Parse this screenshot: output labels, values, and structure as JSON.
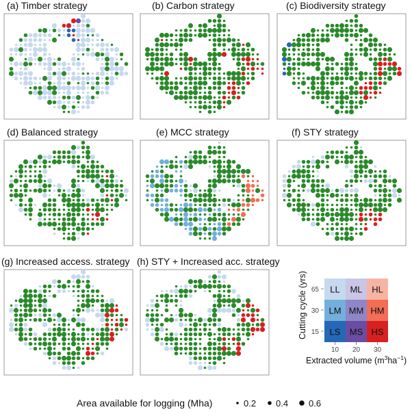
{
  "figure": {
    "panels": [
      {
        "id": "a",
        "title": "(a) Timber strategy"
      },
      {
        "id": "b",
        "title": "(b) Carbon strategy"
      },
      {
        "id": "c",
        "title": "(c) Biodiversity strategy"
      },
      {
        "id": "d",
        "title": "(d) Balanced strategy"
      },
      {
        "id": "e",
        "title": "(e) MCC strategy"
      },
      {
        "id": "f",
        "title": "(f) STY strategy"
      },
      {
        "id": "g",
        "title": "(g) Increased access. strategy"
      },
      {
        "id": "h",
        "title": "(h) STY + Increased acc. strategy"
      }
    ],
    "colors": {
      "LL": "#c6d9ee",
      "ML": "#c9c6e6",
      "HL": "#f7b4a3",
      "LM": "#73afdc",
      "MM": "#8e86c6",
      "HM": "#f26e55",
      "LS": "#2568b5",
      "MS": "#6a4da3",
      "HS": "#d7201f",
      "green": "#2a8a2a"
    }
  },
  "chart_data": {
    "type": "scatter",
    "subtype": "bivariate dot map (8 panels)",
    "legend_matrix": {
      "ylabel": "Cutting cycle (yrs)",
      "xlabel": "Extracted volume (m³ha⁻¹)",
      "xlabel_main": "Extracted volume (m",
      "xlabel_sup1": "3",
      "xlabel_mid": "ha",
      "xlabel_sup2": "−1",
      "xlabel_end": ")",
      "x_ticks": [
        "10",
        "20",
        "30"
      ],
      "y_ticks": [
        "65",
        "30",
        "15"
      ],
      "cells": [
        [
          "LL",
          "ML",
          "HL"
        ],
        [
          "LM",
          "MM",
          "HM"
        ],
        [
          "LS",
          "MS",
          "HS"
        ]
      ]
    },
    "size_legend": {
      "title": "Area available for logging (Mha)",
      "values": [
        0.2,
        0.4,
        0.6
      ],
      "labels": [
        "0.2",
        "0.4",
        "0.6"
      ]
    },
    "panel_composition": {
      "a": {
        "dominant": "LL",
        "green_share": 0.25,
        "note": "mostly LL with scattered green; MS/LS/HS cluster near the north-east arm"
      },
      "b": {
        "dominant": "green",
        "red_zone": "east and south-east edges"
      },
      "c": {
        "dominant": "green",
        "red_zone": "east and south-east edges, some LS/MS at the western edge"
      },
      "d": {
        "dominant": "green",
        "extra": "LL patches on margins, HS in south-east"
      },
      "e": {
        "dominant": "green",
        "extra": "LM bands in west/south, HM patches in east"
      },
      "f": {
        "dominant": "green",
        "extra": "LL patches, HS in south-east"
      },
      "g": {
        "dominant": "green",
        "extra": "LL margins, HS in east"
      },
      "h": {
        "dominant": "green",
        "extra": "LL margins, HS in east"
      }
    }
  }
}
